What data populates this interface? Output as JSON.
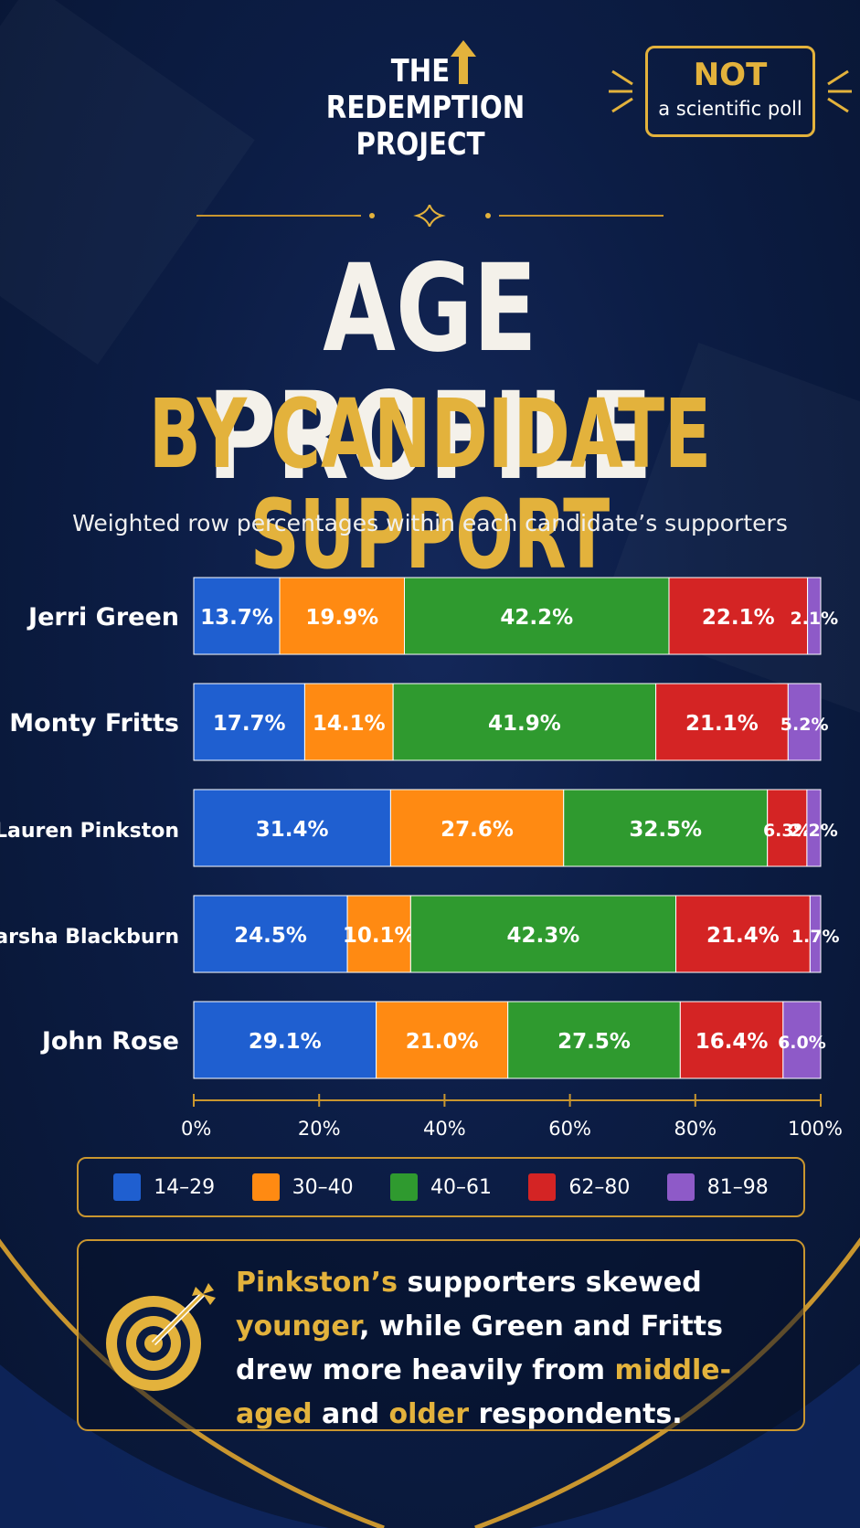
{
  "logo": {
    "line1": "THE",
    "line2": "REDEMPTION",
    "line3": "PROJECT"
  },
  "badge": {
    "main": "NOT",
    "sub": "a scientific poll"
  },
  "icons": [
    "up-arrow-icon",
    "diamond-star-icon",
    "target-arrow-icon"
  ],
  "colors": {
    "gold": "#e3b23c",
    "background": "#0a1a3c"
  },
  "title": {
    "line1": "AGE PROFILE",
    "line2": "BY CANDIDATE SUPPORT"
  },
  "subtitle": "Weighted row percentages within each candidate’s supporters",
  "chart_data": {
    "type": "bar",
    "orientation": "horizontal",
    "stacked": true,
    "categories": [
      "Jerri Green",
      "Monty Fritts",
      "Lauren Pinkston",
      "Marsha Blackburn",
      "John Rose"
    ],
    "series": [
      {
        "name": "14–29",
        "color": "#1f5fd0",
        "values": [
          13.7,
          17.7,
          31.4,
          24.5,
          29.1
        ]
      },
      {
        "name": "30–40",
        "color": "#ff8a12",
        "values": [
          19.9,
          14.1,
          27.6,
          10.1,
          21.0
        ]
      },
      {
        "name": "40–61",
        "color": "#2f9a2f",
        "values": [
          42.2,
          41.9,
          32.5,
          42.3,
          27.5
        ]
      },
      {
        "name": "62–80",
        "color": "#d42424",
        "values": [
          22.1,
          21.1,
          6.3,
          21.4,
          16.4
        ]
      },
      {
        "name": "81–98",
        "color": "#8e5ac8",
        "values": [
          2.1,
          5.2,
          2.2,
          1.7,
          6.0
        ]
      }
    ],
    "data_labels": [
      [
        "13.7%",
        "19.9%",
        "42.2%",
        "22.1%",
        "2.1%"
      ],
      [
        "17.7%",
        "14.1%",
        "41.9%",
        "21.1%",
        "5.2%"
      ],
      [
        "31.4%",
        "27.6%",
        "32.5%",
        "6.3%",
        "2.2%"
      ],
      [
        "24.5%",
        "10.1%",
        "42.3%",
        "21.4%",
        "1.7%"
      ],
      [
        "29.1%",
        "21.0%",
        "27.5%",
        "16.4%",
        "6.0%"
      ]
    ],
    "xticks": [
      "0%",
      "20%",
      "40%",
      "60%",
      "80%",
      "100%"
    ],
    "xlim": [
      0,
      100
    ],
    "grid": false,
    "legend_position": "bottom"
  },
  "callout": {
    "part1": "Pinkston’s",
    "part2": " supporters skewed ",
    "part3": "younger",
    "part4": ", while Green and Fritts drew more heavily from ",
    "part5": "middle-aged",
    "part6": " and ",
    "part7": "older",
    "part8": " respondents."
  }
}
